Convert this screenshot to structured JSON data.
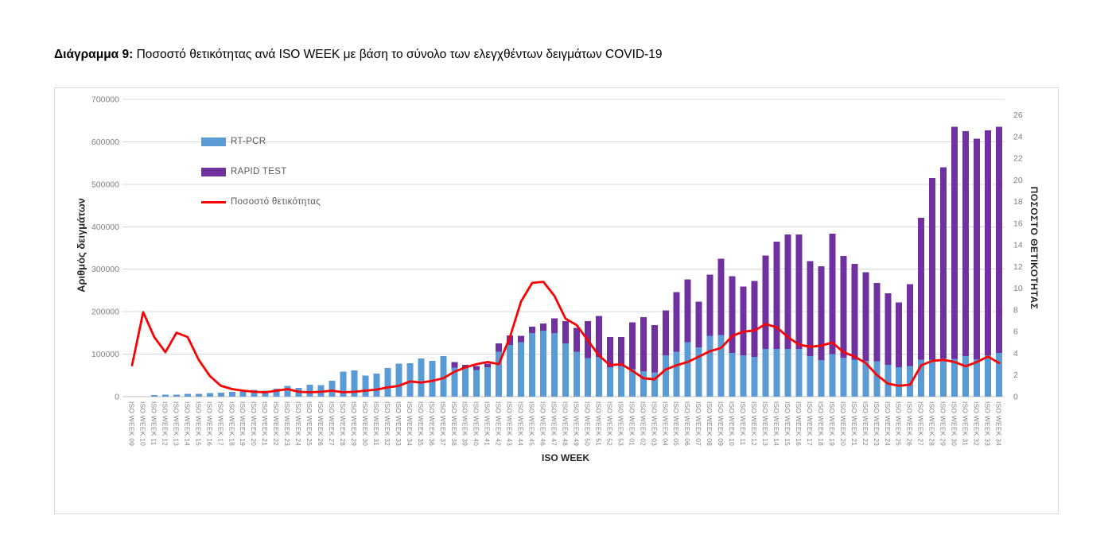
{
  "title": {
    "bold": "Διάγραμμα 9:",
    "rest": " Ποσοστό θετικότητας ανά ISO WEEK με βάση το σύνολο των ελεγχθέντων δειγμάτων COVID-19"
  },
  "colors": {
    "rt_pcr": "#5B9BD5",
    "rapid_test": "#7030A0",
    "positivity_line": "#FE0000",
    "gridline": "#d9d9d9",
    "axis_line": "#bfbfbf",
    "tick_label": "#808080"
  },
  "chart_data": {
    "type": "bar",
    "subtype": "stacked-bars-with-line-overlay",
    "grid": "horizontal",
    "legend_position": "inside-top-left",
    "xlabel": "ISO WEEK",
    "ylabel_left": "Αριθμός δειγμάτων",
    "ylabel_right": "ΠΟΣΟΣΤΟ ΘΕΤΙΚΟΤΗΤΑΣ",
    "left_axis": {
      "min": 0,
      "max": 700000,
      "ticks": [
        0,
        100000,
        200000,
        300000,
        400000,
        500000,
        600000,
        700000
      ]
    },
    "right_axis": {
      "min": 0,
      "max": 26,
      "ticks": [
        0,
        2,
        4,
        6,
        8,
        10,
        12,
        14,
        16,
        18,
        20,
        22,
        24,
        26
      ]
    },
    "categories": [
      "ISO WEEK 09",
      "ISO WEEK 10",
      "ISO WEEK 11",
      "ISO WEEK 12",
      "ISO WEEK 13",
      "ISO WEEK 14",
      "ISO WEEK 15",
      "ISO WEEK 16",
      "ISO WEEK 17",
      "ISO WEEK 18",
      "ISO WEEK 19",
      "ISO WEEK 20",
      "ISO WEEK 21",
      "ISO WEEK 22",
      "ISO WEEK 23",
      "ISO WEEK 24",
      "ISO WEEK 25",
      "ISO WEEK 26",
      "ISO WEEK 27",
      "ISO WEEK 28",
      "ISO WEEK 29",
      "ISO WEEK 30",
      "ISO WEEK 31",
      "ISO WEEK 32",
      "ISO WEEK 33",
      "ISO WEEK 34",
      "ISO WEEK 35",
      "ISO WEEK 36",
      "ISO WEEK 37",
      "ISO WEEK 38",
      "ISO WEEK 39",
      "ISO WEEK 40",
      "ISO WEEK 41",
      "ISO WEEK 42",
      "ISO WEEK 43",
      "ISO WEEK 44",
      "ISO WEEK 45",
      "ISO WEEK 46",
      "ISO WEEK 47",
      "ISO WEEK 48",
      "ISO WEEK 49",
      "ISO WEEK 50",
      "ISO WEEK 51",
      "ISO WEEK 52",
      "ISO WEEK 53",
      "ISO WEEK 01",
      "ISO WEEK 02",
      "ISO WEEK 03",
      "ISO WEEK 04",
      "ISO WEEK 05",
      "ISO WEEK 06",
      "ISO WEEK 07",
      "ISO WEEK 08",
      "ISO WEEK 09",
      "ISO WEEK 10",
      "ISO WEEK 11",
      "ISO WEEK 12",
      "ISO WEEK 13",
      "ISO WEEK 14",
      "ISO WEEK 15",
      "ISO WEEK 16",
      "ISO WEEK 17",
      "ISO WEEK 18",
      "ISO WEEK 19",
      "ISO WEEK 20",
      "ISO WEEK 21",
      "ISO WEEK 22",
      "ISO WEEK 23",
      "ISO WEEK 24",
      "ISO WEEK 25",
      "ISO WEEK 26",
      "ISO WEEK 27",
      "ISO WEEK 28",
      "ISO WEEK 29",
      "ISO WEEK 30",
      "ISO WEEK 31",
      "ISO WEEK 32",
      "ISO WEEK 33",
      "ISO WEEK 34"
    ],
    "series": [
      {
        "name": "RT-PCR",
        "type": "bar",
        "axis": "left",
        "color": "#5B9BD5",
        "values": [
          0,
          0,
          4000,
          5000,
          5000,
          6500,
          6500,
          8000,
          9500,
          11000,
          13000,
          16000,
          14000,
          19000,
          25000,
          21000,
          28000,
          27000,
          37000,
          59000,
          62000,
          50000,
          54000,
          67000,
          78000,
          79000,
          90000,
          84000,
          95000,
          68000,
          67000,
          63000,
          69000,
          106000,
          122000,
          128000,
          150000,
          155000,
          150000,
          125000,
          106000,
          91000,
          94000,
          69000,
          72000,
          65000,
          60000,
          57000,
          97000,
          106000,
          128000,
          116000,
          143000,
          145000,
          103000,
          97000,
          94000,
          112000,
          112000,
          112000,
          112000,
          95000,
          86000,
          100000,
          92000,
          87000,
          84000,
          83000,
          75000,
          69000,
          72000,
          87000,
          87000,
          90000,
          89000,
          95000,
          88000,
          97000,
          103000
        ]
      },
      {
        "name": "RAPID TEST",
        "type": "bar",
        "axis": "left",
        "color": "#7030A0",
        "values": [
          0,
          0,
          0,
          0,
          0,
          0,
          0,
          0,
          0,
          0,
          0,
          0,
          0,
          0,
          0,
          0,
          0,
          0,
          0,
          0,
          0,
          0,
          0,
          0,
          0,
          0,
          0,
          0,
          0,
          13000,
          8000,
          9000,
          9000,
          19000,
          22000,
          15000,
          15000,
          17000,
          34000,
          53000,
          56000,
          87000,
          96000,
          71000,
          68000,
          110000,
          127000,
          111000,
          106000,
          140000,
          148000,
          108000,
          144000,
          180000,
          181000,
          162000,
          178000,
          220000,
          253000,
          270000,
          270000,
          224000,
          221000,
          284000,
          239000,
          226000,
          209000,
          185000,
          168000,
          153000,
          193000,
          334000,
          428000,
          450000,
          546000,
          530000,
          519000,
          530000,
          532000
        ]
      },
      {
        "name": "Ποσοστό θετικότητας",
        "type": "line",
        "axis": "right",
        "color": "#FE0000",
        "values": [
          2.9,
          7.8,
          5.5,
          4.1,
          5.9,
          5.5,
          3.4,
          1.9,
          1.0,
          0.7,
          0.55,
          0.45,
          0.4,
          0.55,
          0.7,
          0.45,
          0.4,
          0.45,
          0.55,
          0.4,
          0.45,
          0.55,
          0.65,
          0.85,
          1.0,
          1.4,
          1.3,
          1.45,
          1.7,
          2.3,
          2.7,
          3.0,
          3.2,
          3.0,
          5.5,
          8.8,
          10.5,
          10.6,
          9.3,
          7.2,
          6.6,
          5.2,
          3.8,
          2.9,
          3.0,
          2.4,
          1.7,
          1.6,
          2.5,
          2.9,
          3.2,
          3.7,
          4.2,
          4.5,
          5.6,
          6.0,
          6.1,
          6.7,
          6.4,
          5.5,
          4.8,
          4.6,
          4.7,
          5.0,
          4.1,
          3.7,
          3.1,
          2.0,
          1.2,
          1.0,
          1.1,
          2.9,
          3.3,
          3.4,
          3.2,
          2.8,
          3.2,
          3.7,
          3.1
        ]
      }
    ]
  }
}
